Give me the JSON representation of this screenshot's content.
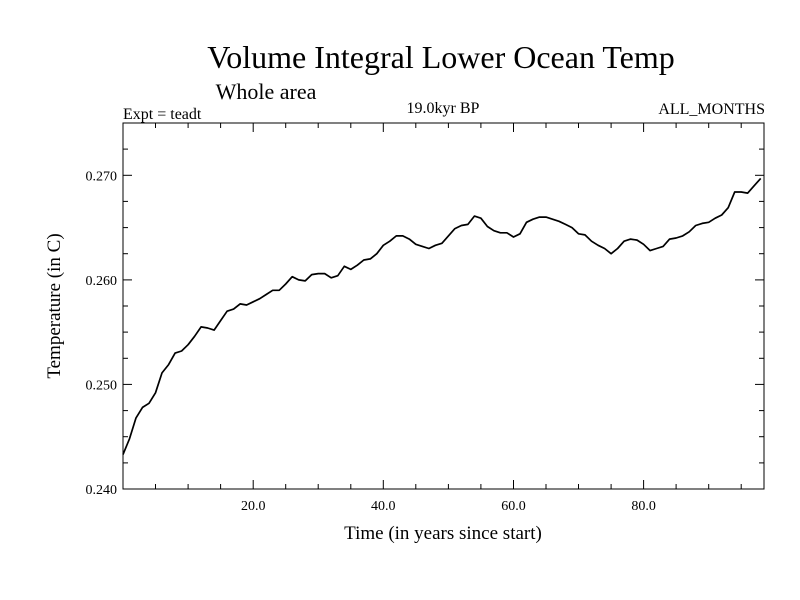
{
  "chart_data": {
    "type": "line",
    "title": "Volume Integral Lower Ocean Temp",
    "subtitle": "Whole area",
    "header_left": "Expt = teadt",
    "header_center": "19.0kyr BP",
    "header_right": "ALL_MONTHS",
    "xlabel": "Time (in years since start)",
    "ylabel": "Temperature (in C)",
    "xlim": [
      0,
      98.5
    ],
    "ylim": [
      0.24,
      0.275
    ],
    "x_ticks": [
      20,
      40,
      60,
      80
    ],
    "x_tick_labels": [
      "20.0",
      "40.0",
      "60.0",
      "80.0"
    ],
    "y_ticks": [
      0.24,
      0.25,
      0.26,
      0.27
    ],
    "y_tick_labels": [
      "0.240",
      "0.250",
      "0.260",
      "0.270"
    ],
    "series": [
      {
        "name": "Volume Integral Lower Ocean Temp",
        "color": "#000000",
        "x": [
          0,
          1,
          2,
          3,
          4,
          5,
          6,
          7,
          8,
          9,
          10,
          11,
          12,
          13,
          14,
          15,
          16,
          17,
          18,
          19,
          20,
          21,
          22,
          23,
          24,
          25,
          26,
          27,
          28,
          29,
          30,
          31,
          32,
          33,
          34,
          35,
          36,
          37,
          38,
          39,
          40,
          41,
          42,
          43,
          44,
          45,
          46,
          47,
          48,
          49,
          50,
          51,
          52,
          53,
          54,
          55,
          56,
          57,
          58,
          59,
          60,
          61,
          62,
          63,
          64,
          65,
          66,
          67,
          68,
          69,
          70,
          71,
          72,
          73,
          74,
          75,
          76,
          77,
          78,
          79,
          80,
          81,
          82,
          83,
          84,
          85,
          86,
          87,
          88,
          89,
          90,
          91,
          92,
          93,
          94,
          95,
          96,
          97,
          98
        ],
        "values": [
          0.2433,
          0.2448,
          0.2468,
          0.2478,
          0.2482,
          0.2492,
          0.2511,
          0.2519,
          0.253,
          0.2532,
          0.2538,
          0.2546,
          0.2555,
          0.2554,
          0.2552,
          0.2561,
          0.257,
          0.2572,
          0.2577,
          0.2576,
          0.2579,
          0.2582,
          0.2586,
          0.259,
          0.259,
          0.2596,
          0.2603,
          0.26,
          0.2599,
          0.2605,
          0.2606,
          0.2606,
          0.2602,
          0.2604,
          0.2613,
          0.261,
          0.2614,
          0.2619,
          0.262,
          0.2625,
          0.2633,
          0.2637,
          0.2642,
          0.2642,
          0.2639,
          0.2634,
          0.2632,
          0.263,
          0.2633,
          0.2635,
          0.2642,
          0.2649,
          0.2652,
          0.2653,
          0.2661,
          0.2659,
          0.2651,
          0.2647,
          0.2645,
          0.2645,
          0.2641,
          0.2644,
          0.2655,
          0.2658,
          0.266,
          0.266,
          0.2658,
          0.2656,
          0.2653,
          0.265,
          0.2644,
          0.2643,
          0.2637,
          0.2633,
          0.263,
          0.2625,
          0.263,
          0.2637,
          0.2639,
          0.2638,
          0.2634,
          0.2628,
          0.263,
          0.2632,
          0.2639,
          0.264,
          0.2642,
          0.2646,
          0.2652,
          0.2654,
          0.2655,
          0.2659,
          0.2662,
          0.2669,
          0.2684,
          0.2684,
          0.2683,
          0.269,
          0.2697
        ]
      }
    ]
  }
}
